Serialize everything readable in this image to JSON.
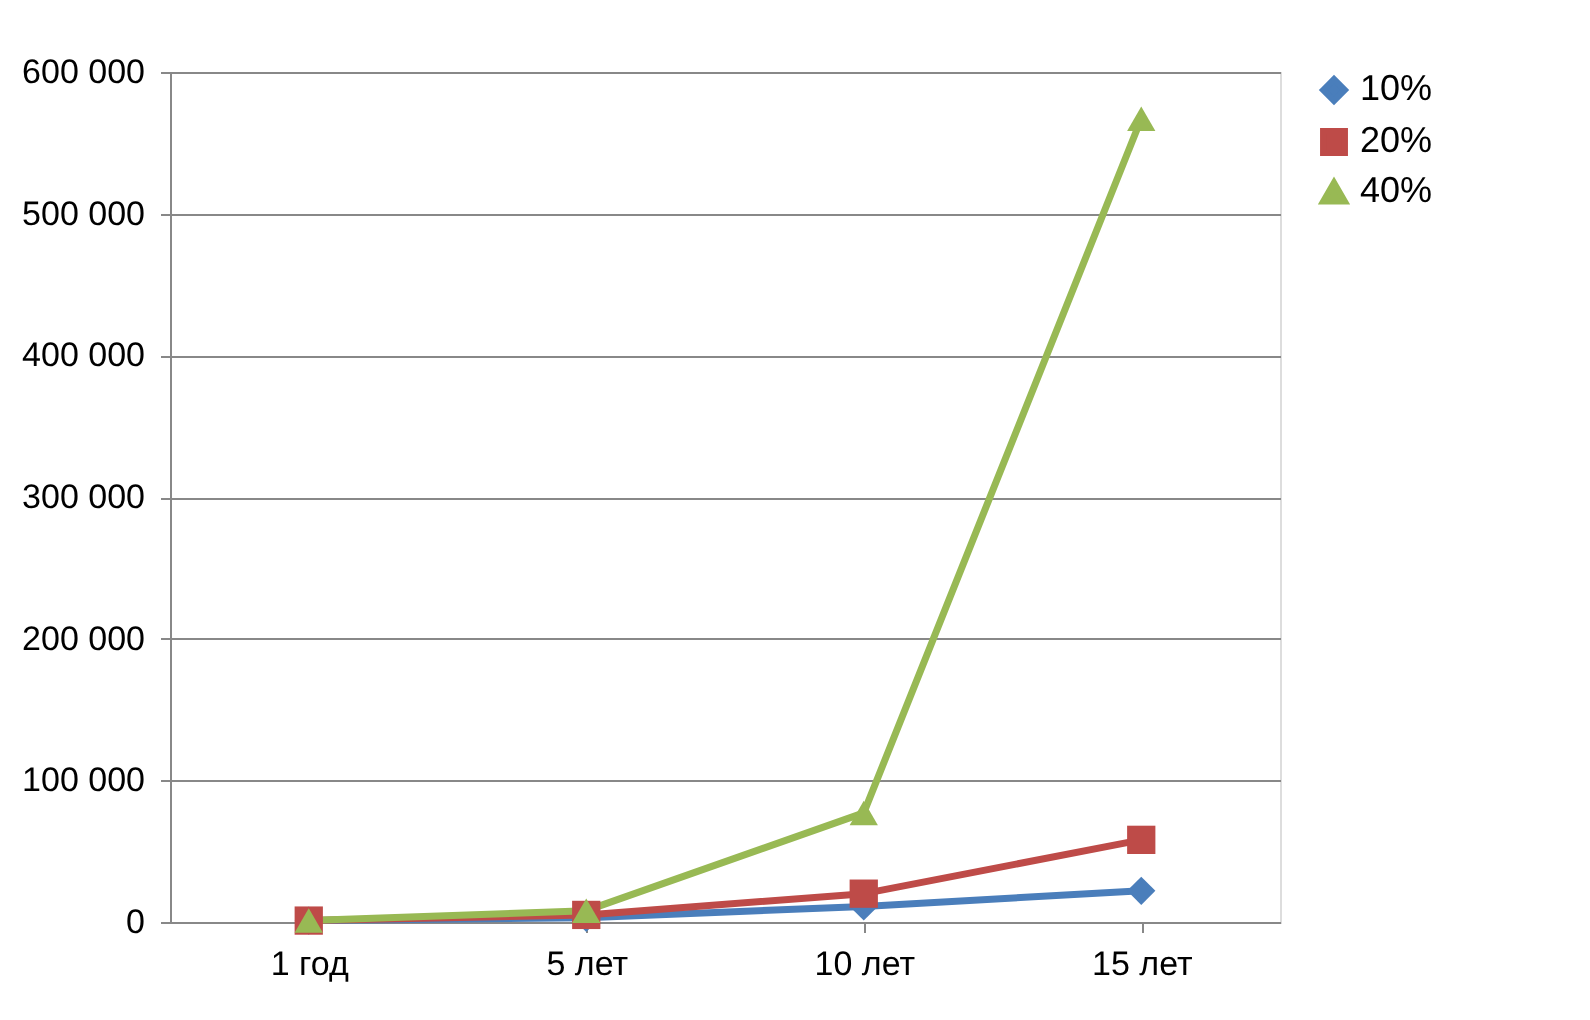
{
  "chart_data": {
    "type": "line",
    "categories": [
      "1 год",
      "5 лет",
      "10 лет",
      "15 лет"
    ],
    "series": [
      {
        "name": "10%",
        "color": "#4a7ebb",
        "marker": "diamond",
        "values": [
          1000,
          3000,
          11000,
          22000
        ]
      },
      {
        "name": "20%",
        "color": "#be4b48",
        "marker": "square",
        "values": [
          1000,
          5000,
          20000,
          58000
        ]
      },
      {
        "name": "40%",
        "color": "#98b954",
        "marker": "triangle",
        "values": [
          1000,
          8000,
          77000,
          567000
        ]
      }
    ],
    "ylim": [
      0,
      600000
    ],
    "yticks": [
      {
        "value": 0,
        "label": "0"
      },
      {
        "value": 100000,
        "label": "100 000"
      },
      {
        "value": 200000,
        "label": "200 000"
      },
      {
        "value": 300000,
        "label": "300 000"
      },
      {
        "value": 400000,
        "label": "400 000"
      },
      {
        "value": 500000,
        "label": "500 000"
      },
      {
        "value": 600000,
        "label": "600 000"
      }
    ],
    "grid": "y",
    "legend": "right",
    "line_style": "solid"
  }
}
